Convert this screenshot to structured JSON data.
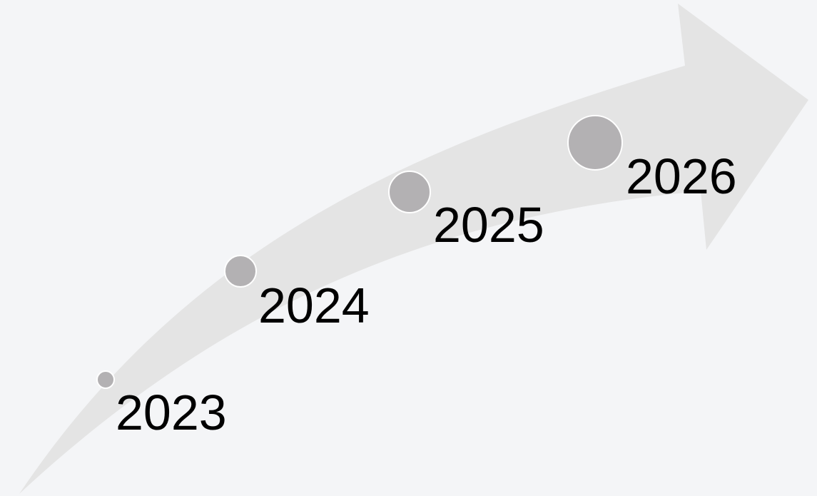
{
  "timeline": {
    "milestones": [
      {
        "year": "2023"
      },
      {
        "year": "2024"
      },
      {
        "year": "2025"
      },
      {
        "year": "2026"
      }
    ]
  },
  "colors": {
    "background": "#f4f5f7",
    "arrow": "#e4e4e4",
    "dot": "#b3b1b3",
    "dot_stroke": "#ffffff",
    "text": "#000000"
  }
}
